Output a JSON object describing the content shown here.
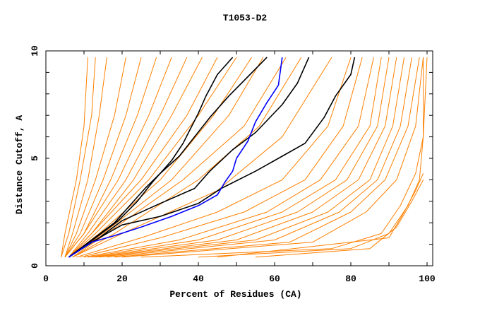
{
  "chart_data": {
    "type": "line",
    "title": "T1053-D2",
    "xlabel": "Percent of Residues (CA)",
    "ylabel": "Distance Cutoff, A",
    "xlim": [
      0,
      100
    ],
    "ylim": [
      0,
      10
    ],
    "xticks": [
      0,
      20,
      40,
      60,
      80,
      100
    ],
    "xtick_labels": [
      "0",
      "20",
      "40",
      "60",
      "80",
      "100"
    ],
    "yticks": [
      0,
      5,
      10
    ],
    "ytick_labels": [
      "0",
      "5",
      "10"
    ],
    "grid": false,
    "colors": {
      "other": "#ff8000",
      "highlight": "#000000",
      "target": "#0000ff"
    },
    "series": [
      {
        "name": "orange-1",
        "color": "other",
        "points": [
          [
            4,
            0.4
          ],
          [
            5,
            1.5
          ],
          [
            8,
            4
          ],
          [
            10,
            6.5
          ],
          [
            11,
            9.7
          ]
        ]
      },
      {
        "name": "orange-2",
        "color": "other",
        "points": [
          [
            4,
            0.4
          ],
          [
            6,
            1.5
          ],
          [
            9,
            4
          ],
          [
            12,
            7
          ],
          [
            13,
            9.7
          ]
        ]
      },
      {
        "name": "orange-3",
        "color": "other",
        "points": [
          [
            5,
            0.4
          ],
          [
            7,
            1.5
          ],
          [
            11,
            4
          ],
          [
            14,
            7
          ],
          [
            16,
            9.7
          ]
        ]
      },
      {
        "name": "orange-4",
        "color": "other",
        "points": [
          [
            5,
            0.4
          ],
          [
            8,
            1.5
          ],
          [
            13,
            4
          ],
          [
            18,
            7
          ],
          [
            21,
            9.7
          ]
        ]
      },
      {
        "name": "orange-5",
        "color": "other",
        "points": [
          [
            5,
            0.4
          ],
          [
            9,
            1.5
          ],
          [
            15,
            4
          ],
          [
            21,
            7
          ],
          [
            25,
            9.7
          ]
        ]
      },
      {
        "name": "orange-6",
        "color": "other",
        "points": [
          [
            5,
            0.4
          ],
          [
            10,
            1.5
          ],
          [
            17,
            4
          ],
          [
            24,
            7
          ],
          [
            29,
            9.7
          ]
        ]
      },
      {
        "name": "orange-7",
        "color": "other",
        "points": [
          [
            5,
            0.4
          ],
          [
            10,
            1.5
          ],
          [
            19,
            4
          ],
          [
            27,
            7
          ],
          [
            33,
            9.7
          ]
        ]
      },
      {
        "name": "orange-8",
        "color": "other",
        "points": [
          [
            6,
            0.4
          ],
          [
            11,
            1.5
          ],
          [
            21,
            4
          ],
          [
            30,
            7
          ],
          [
            37,
            9.7
          ]
        ]
      },
      {
        "name": "orange-9",
        "color": "other",
        "points": [
          [
            6,
            0.4
          ],
          [
            12,
            1.5
          ],
          [
            23,
            4
          ],
          [
            33,
            7
          ],
          [
            41,
            9.7
          ]
        ]
      },
      {
        "name": "orange-10",
        "color": "other",
        "points": [
          [
            6,
            0.4
          ],
          [
            12,
            1.5
          ],
          [
            25,
            4
          ],
          [
            37,
            7
          ],
          [
            45,
            9.7
          ]
        ]
      },
      {
        "name": "orange-11",
        "color": "other",
        "points": [
          [
            6,
            0.4
          ],
          [
            13,
            1.5
          ],
          [
            27,
            4
          ],
          [
            40,
            7
          ],
          [
            50,
            9.7
          ]
        ]
      },
      {
        "name": "orange-12",
        "color": "other",
        "points": [
          [
            6,
            0.4
          ],
          [
            14,
            1.5
          ],
          [
            30,
            4
          ],
          [
            44,
            7
          ],
          [
            54,
            9.7
          ]
        ]
      },
      {
        "name": "orange-13",
        "color": "other",
        "points": [
          [
            6,
            0.4
          ],
          [
            15,
            1.5
          ],
          [
            33,
            4
          ],
          [
            48,
            7
          ],
          [
            57,
            9.7
          ]
        ]
      },
      {
        "name": "orange-14",
        "color": "other",
        "points": [
          [
            7,
            0.4
          ],
          [
            16,
            1.5
          ],
          [
            36,
            4
          ],
          [
            52,
            6.5
          ],
          [
            63,
            9.7
          ]
        ]
      },
      {
        "name": "orange-15",
        "color": "other",
        "points": [
          [
            7,
            0.4
          ],
          [
            18,
            1.5
          ],
          [
            40,
            4
          ],
          [
            56,
            6.5
          ],
          [
            67,
            9.7
          ]
        ]
      },
      {
        "name": "orange-16",
        "color": "other",
        "points": [
          [
            7,
            0.4
          ],
          [
            20,
            1.5
          ],
          [
            45,
            3.5
          ],
          [
            62,
            6
          ],
          [
            75,
            9.7
          ]
        ]
      },
      {
        "name": "orange-17",
        "color": "other",
        "points": [
          [
            8,
            0.4
          ],
          [
            25,
            1.3
          ],
          [
            45,
            2.5
          ],
          [
            62,
            4
          ],
          [
            74,
            6.5
          ],
          [
            80,
            9.7
          ]
        ]
      },
      {
        "name": "orange-18",
        "color": "other",
        "points": [
          [
            9,
            0.4
          ],
          [
            30,
            1.3
          ],
          [
            52,
            2.5
          ],
          [
            68,
            4
          ],
          [
            78,
            6.5
          ],
          [
            83,
            9.7
          ]
        ]
      },
      {
        "name": "orange-19",
        "color": "other",
        "points": [
          [
            10,
            0.4
          ],
          [
            35,
            1.2
          ],
          [
            58,
            2.5
          ],
          [
            72,
            4
          ],
          [
            82,
            6.5
          ],
          [
            86,
            9.7
          ]
        ]
      },
      {
        "name": "orange-20",
        "color": "other",
        "points": [
          [
            11,
            0.4
          ],
          [
            40,
            1.2
          ],
          [
            62,
            2.5
          ],
          [
            76,
            4
          ],
          [
            85,
            6.5
          ],
          [
            88,
            9.7
          ]
        ]
      },
      {
        "name": "orange-21",
        "color": "other",
        "points": [
          [
            12,
            0.4
          ],
          [
            45,
            1.2
          ],
          [
            66,
            2.5
          ],
          [
            79,
            4
          ],
          [
            87,
            6.5
          ],
          [
            90,
            9.7
          ]
        ]
      },
      {
        "name": "orange-22",
        "color": "other",
        "points": [
          [
            13,
            0.4
          ],
          [
            50,
            1.2
          ],
          [
            70,
            2.5
          ],
          [
            82,
            4
          ],
          [
            89,
            6.5
          ],
          [
            92,
            9.7
          ]
        ]
      },
      {
        "name": "orange-23",
        "color": "other",
        "points": [
          [
            14,
            0.4
          ],
          [
            55,
            1.2
          ],
          [
            74,
            2.5
          ],
          [
            85,
            4
          ],
          [
            91,
            6.5
          ],
          [
            94,
            9.7
          ]
        ]
      },
      {
        "name": "orange-24",
        "color": "other",
        "points": [
          [
            16,
            0.4
          ],
          [
            60,
            1.2
          ],
          [
            77,
            2.5
          ],
          [
            87,
            4
          ],
          [
            93,
            6.5
          ],
          [
            96,
            9.7
          ]
        ]
      },
      {
        "name": "orange-25",
        "color": "other",
        "points": [
          [
            18,
            0.4
          ],
          [
            64,
            1.1
          ],
          [
            80,
            2.5
          ],
          [
            89,
            4
          ],
          [
            95,
            6.5
          ],
          [
            98,
            9.7
          ]
        ]
      },
      {
        "name": "orange-26",
        "color": "other",
        "points": [
          [
            20,
            0.4
          ],
          [
            70,
            1.1
          ],
          [
            84,
            2.5
          ],
          [
            92,
            4
          ],
          [
            97,
            6.5
          ],
          [
            99,
            9.7
          ]
        ]
      },
      {
        "name": "orange-27",
        "color": "other",
        "points": [
          [
            25,
            0.4
          ],
          [
            75,
            0.8
          ],
          [
            88,
            1.5
          ],
          [
            93,
            2.8
          ],
          [
            97,
            4.3
          ],
          [
            99,
            6
          ],
          [
            100,
            9.7
          ]
        ]
      },
      {
        "name": "orange-28",
        "color": "other",
        "points": [
          [
            40,
            0.4
          ],
          [
            80,
            0.8
          ],
          [
            90,
            1.5
          ],
          [
            95,
            2.8
          ],
          [
            98,
            4
          ],
          [
            99,
            6
          ],
          [
            99,
            9.7
          ]
        ]
      },
      {
        "name": "orange-29",
        "color": "other",
        "points": [
          [
            55,
            0.4
          ],
          [
            85,
            0.8
          ],
          [
            92,
            1.8
          ],
          [
            96,
            3
          ],
          [
            99,
            4
          ]
        ]
      },
      {
        "name": "orange-30",
        "color": "other",
        "points": [
          [
            45,
            0.4
          ],
          [
            90,
            1.3
          ],
          [
            94,
            2.5
          ],
          [
            97,
            3.5
          ],
          [
            99,
            4.3
          ]
        ]
      },
      {
        "name": "black-1",
        "color": "highlight",
        "points": [
          [
            6,
            0.4
          ],
          [
            13,
            1.3
          ],
          [
            19,
            2.1
          ],
          [
            24,
            3
          ],
          [
            28,
            3.9
          ],
          [
            33,
            4.9
          ],
          [
            36,
            5.7
          ],
          [
            38,
            6.4
          ],
          [
            40,
            7.1
          ],
          [
            42,
            7.9
          ],
          [
            45,
            8.9
          ],
          [
            49,
            9.7
          ]
        ]
      },
      {
        "name": "black-2",
        "color": "highlight",
        "points": [
          [
            6,
            0.4
          ],
          [
            12,
            1.2
          ],
          [
            18,
            2
          ],
          [
            22,
            2.8
          ],
          [
            26,
            3.6
          ],
          [
            30,
            4.3
          ],
          [
            35,
            5.1
          ],
          [
            39,
            6
          ],
          [
            43,
            6.9
          ],
          [
            48,
            7.9
          ],
          [
            53,
            8.8
          ],
          [
            58,
            9.7
          ]
        ]
      },
      {
        "name": "black-3",
        "color": "highlight",
        "points": [
          [
            6,
            0.4
          ],
          [
            14,
            1.3
          ],
          [
            20,
            2.1
          ],
          [
            30,
            2.9
          ],
          [
            39,
            3.6
          ],
          [
            43,
            4.4
          ],
          [
            49,
            5.4
          ],
          [
            55,
            6.2
          ],
          [
            62,
            7.5
          ],
          [
            66,
            8.5
          ],
          [
            69,
            9.7
          ]
        ]
      },
      {
        "name": "black-4",
        "color": "highlight",
        "points": [
          [
            6,
            0.4
          ],
          [
            12,
            1.1
          ],
          [
            20,
            1.9
          ],
          [
            30,
            2.3
          ],
          [
            40,
            2.9
          ],
          [
            46,
            3.6
          ],
          [
            55,
            4.4
          ],
          [
            62,
            5.1
          ],
          [
            68,
            5.7
          ],
          [
            73,
            6.9
          ],
          [
            76,
            7.9
          ],
          [
            80,
            8.9
          ],
          [
            81,
            9.7
          ]
        ]
      },
      {
        "name": "blue",
        "color": "target",
        "points": [
          [
            6,
            0.4
          ],
          [
            12,
            1.1
          ],
          [
            18,
            1.4
          ],
          [
            25,
            1.8
          ],
          [
            33,
            2.3
          ],
          [
            40,
            2.8
          ],
          [
            45,
            3.3
          ],
          [
            47,
            3.9
          ],
          [
            49,
            4.4
          ],
          [
            50,
            5
          ],
          [
            53,
            5.8
          ],
          [
            55,
            6.7
          ],
          [
            58,
            7.6
          ],
          [
            61,
            8.4
          ],
          [
            62,
            9.7
          ]
        ]
      }
    ]
  }
}
